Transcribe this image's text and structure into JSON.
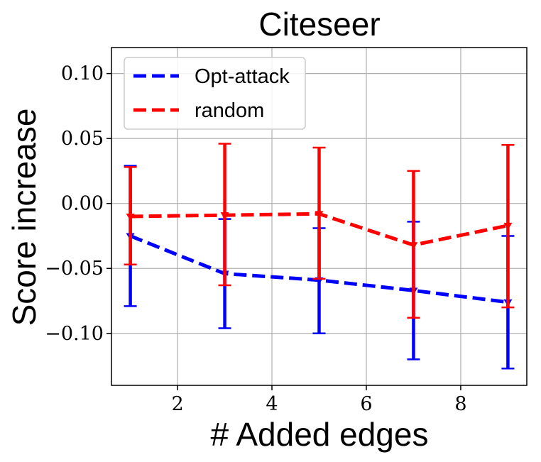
{
  "chart_data": {
    "type": "line",
    "title": "Citeseer",
    "xlabel": "# Added edges",
    "ylabel": "Score increase",
    "xlim": [
      0.6,
      9.4
    ],
    "ylim": [
      -0.14,
      0.12
    ],
    "xticks": [
      2,
      4,
      6,
      8
    ],
    "xtick_labels": [
      "2",
      "4",
      "6",
      "8"
    ],
    "yticks": [
      0.1,
      0.05,
      0.0,
      -0.05,
      -0.1
    ],
    "ytick_labels": [
      "0.10",
      "0.05",
      "0.00",
      "−0.05",
      "−0.10"
    ],
    "grid": true,
    "legend_position": "top-left",
    "x": [
      1,
      3,
      5,
      7,
      9
    ],
    "series": [
      {
        "name": "Opt-attack",
        "color": "#0000ff",
        "values": [
          -0.025,
          -0.054,
          -0.059,
          -0.067,
          -0.076
        ],
        "err_lower": [
          -0.079,
          -0.096,
          -0.1,
          -0.12,
          -0.127
        ],
        "err_upper": [
          0.029,
          -0.012,
          -0.019,
          -0.014,
          -0.025
        ]
      },
      {
        "name": "random",
        "color": "#ff0000",
        "values": [
          -0.01,
          -0.009,
          -0.008,
          -0.032,
          -0.017
        ],
        "err_lower": [
          -0.047,
          -0.063,
          -0.058,
          -0.088,
          -0.08
        ],
        "err_upper": [
          0.028,
          0.046,
          0.043,
          0.025,
          0.045
        ]
      }
    ]
  }
}
